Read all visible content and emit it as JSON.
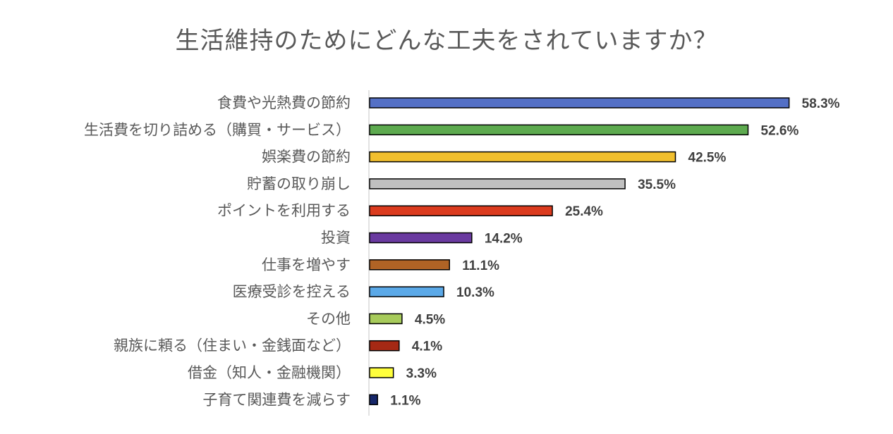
{
  "chart_data": {
    "type": "bar",
    "orientation": "horizontal",
    "title": "生活維持のためにどんな工夫をされていますか？",
    "xlabel": "",
    "ylabel": "",
    "unit": "%",
    "xlim": [
      0,
      60
    ],
    "grid": false,
    "legend": "none",
    "categories": [
      "食費や光熱費の節約",
      "生活費を切り詰める（購買・サービス）",
      "娯楽費の節約",
      "貯蓄の取り崩し",
      "ポイントを利用する",
      "投資",
      "仕事を増やす",
      "医療受診を控える",
      "その他",
      "親族に頼る（住まい・金銭面など）",
      "借金（知人・金融機関）",
      "子育て関連費を減らす"
    ],
    "values": [
      58.3,
      52.6,
      42.5,
      35.5,
      25.4,
      14.2,
      11.1,
      10.3,
      4.5,
      4.1,
      3.3,
      1.1
    ],
    "data_labels": [
      "58.3%",
      "52.6%",
      "42.5%",
      "35.5%",
      "25.4%",
      "14.2%",
      "11.1%",
      "10.3%",
      "4.5%",
      "4.1%",
      "3.3%",
      "1.1%"
    ],
    "colors": [
      "#5470C6",
      "#5DAA4F",
      "#F1BF2E",
      "#C0C0C0",
      "#DB3B1E",
      "#6A3AA0",
      "#B06325",
      "#5BA9E8",
      "#A7CB5B",
      "#A52914",
      "#FFFF3C",
      "#16276A"
    ]
  }
}
